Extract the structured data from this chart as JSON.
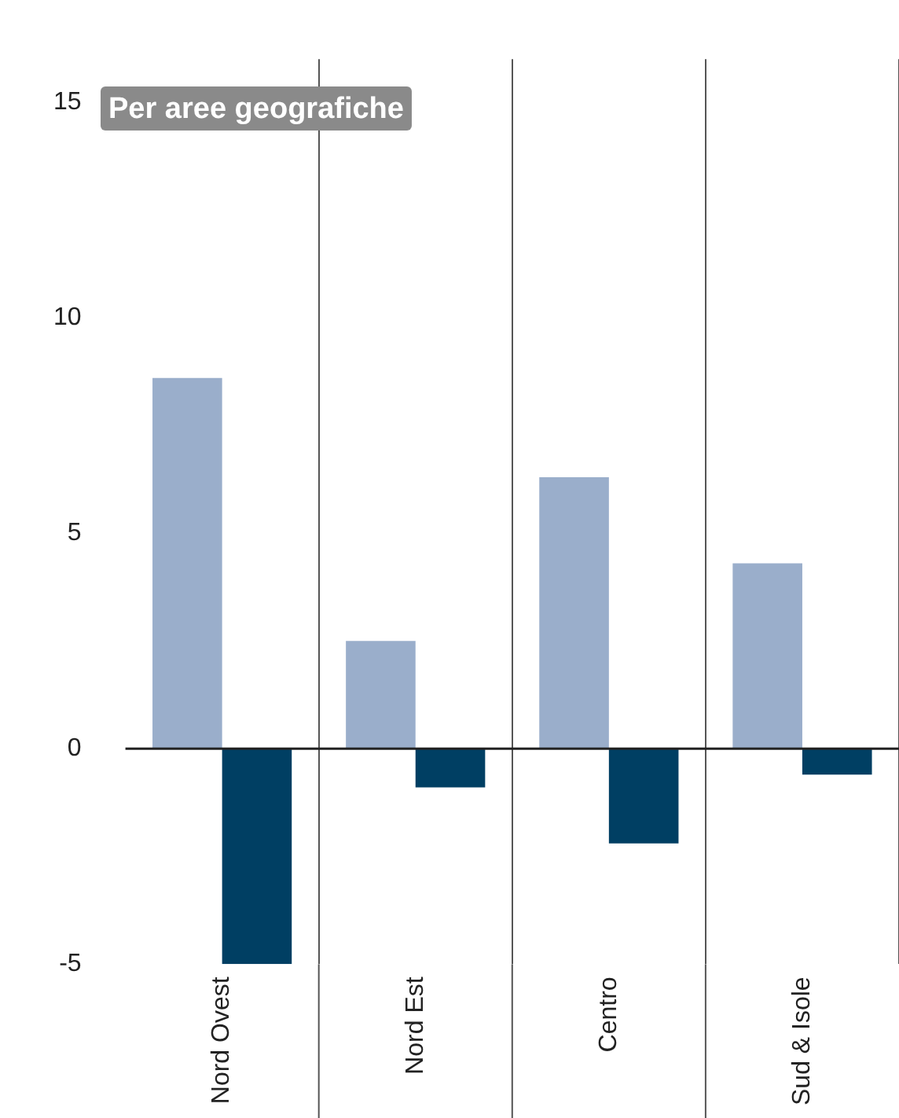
{
  "chart_data": {
    "type": "bar",
    "categories": [
      "Nord Ovest",
      "Nord Est",
      "Centro",
      "Sud & Isole"
    ],
    "series": [
      {
        "color": "#9aaecb",
        "values": [
          8.6,
          2.5,
          6.3,
          4.3
        ]
      },
      {
        "color": "#003f63",
        "values": [
          -5.0,
          -0.9,
          -2.2,
          -0.6
        ]
      }
    ],
    "ylim": [
      -5,
      16
    ],
    "yticks": [
      -5,
      0,
      5,
      10,
      15
    ],
    "grid": "x",
    "legend": false,
    "annotations": [
      "Per aree geografiche"
    ]
  }
}
